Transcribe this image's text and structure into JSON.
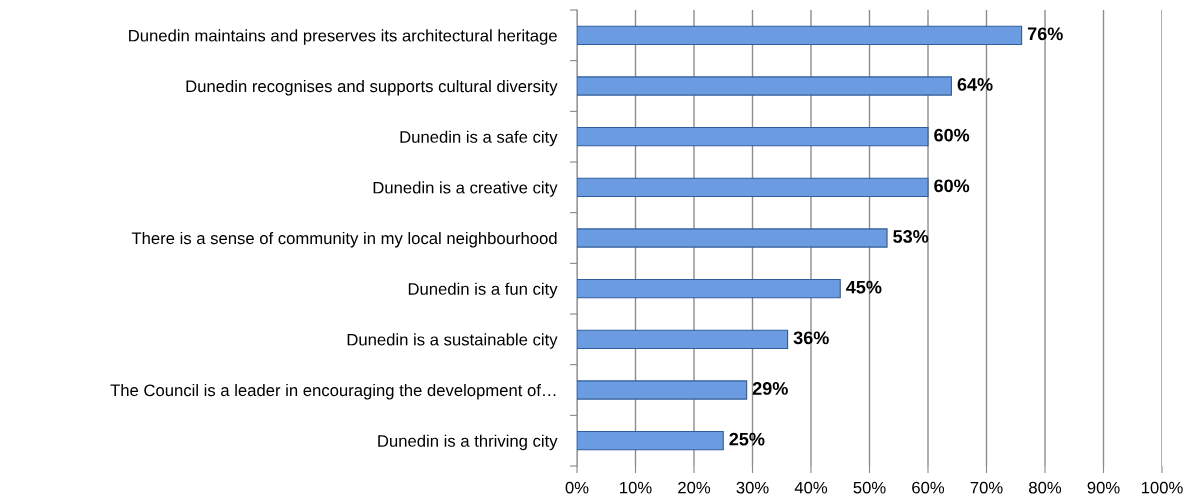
{
  "chart_data": {
    "type": "bar",
    "orientation": "horizontal",
    "categories": [
      "Dunedin maintains and preserves its architectural heritage",
      "Dunedin recognises and supports cultural diversity",
      "Dunedin is a safe city",
      "Dunedin is a creative city",
      "There is a sense of community in my local neighbourhood",
      "Dunedin is a fun city",
      "Dunedin is a sustainable city",
      "The Council is a leader in encouraging the development of…",
      "Dunedin is a thriving city"
    ],
    "values": [
      76,
      64,
      60,
      60,
      53,
      45,
      36,
      29,
      25
    ],
    "value_labels": [
      "76%",
      "64%",
      "60%",
      "60%",
      "53%",
      "45%",
      "36%",
      "29%",
      "25%"
    ],
    "color": "#6b9be0",
    "xlim": [
      0,
      100
    ],
    "xticks": [
      {
        "value": 0,
        "label": "0%"
      },
      {
        "value": 10,
        "label": "10%"
      },
      {
        "value": 20,
        "label": "20%"
      },
      {
        "value": 30,
        "label": "30%"
      },
      {
        "value": 40,
        "label": "40%"
      },
      {
        "value": 50,
        "label": "50%"
      },
      {
        "value": 60,
        "label": "60%"
      },
      {
        "value": 70,
        "label": "70%"
      },
      {
        "value": 80,
        "label": "80%"
      },
      {
        "value": 90,
        "label": "90%"
      },
      {
        "value": 100,
        "label": "100%"
      }
    ],
    "grid": "x",
    "legend": false
  }
}
